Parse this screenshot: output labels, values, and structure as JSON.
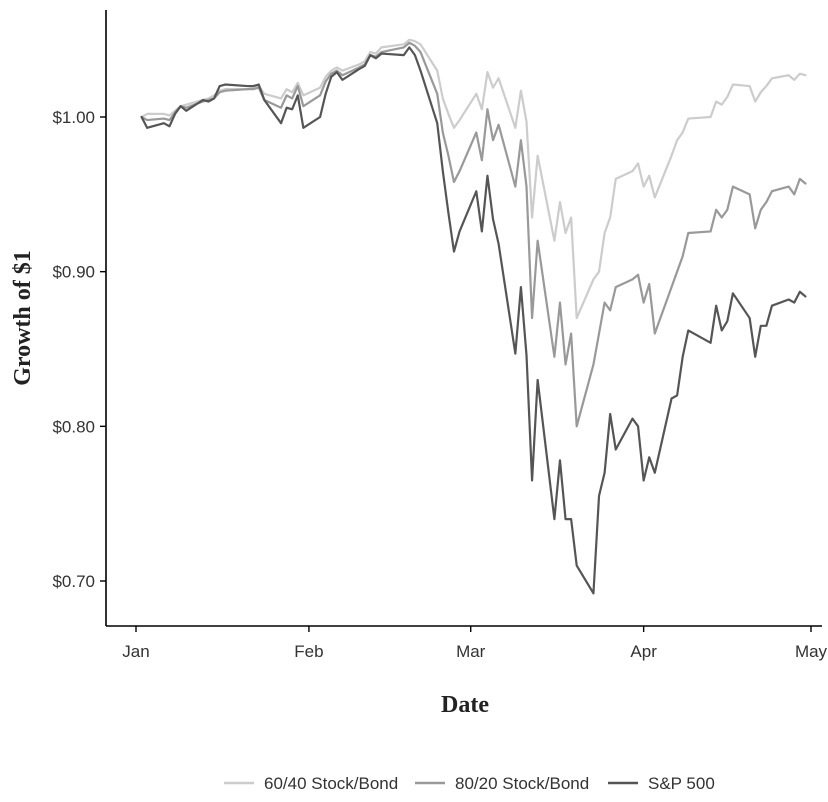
{
  "chart_data": {
    "type": "line",
    "title": "",
    "xlabel": "Date",
    "ylabel": "Growth of $1",
    "grid": false,
    "legend_position": "bottom",
    "x_domain": [
      "2020-01-01",
      "2020-05-01"
    ],
    "ylim": [
      0.675,
      1.07
    ],
    "x_ticks": [
      {
        "label": "Jan",
        "date": "2020-01-01"
      },
      {
        "label": "Feb",
        "date": "2020-02-01"
      },
      {
        "label": "Mar",
        "date": "2020-03-01"
      },
      {
        "label": "Apr",
        "date": "2020-04-01"
      },
      {
        "label": "May",
        "date": "2020-05-01"
      }
    ],
    "y_ticks": [
      {
        "label": "$0.70",
        "value": 0.7
      },
      {
        "label": "$0.80",
        "value": 0.8
      },
      {
        "label": "$0.90",
        "value": 0.9
      },
      {
        "label": "$1.00",
        "value": 1.0
      }
    ],
    "x": [
      "2020-01-02",
      "2020-01-03",
      "2020-01-06",
      "2020-01-07",
      "2020-01-08",
      "2020-01-09",
      "2020-01-10",
      "2020-01-13",
      "2020-01-14",
      "2020-01-15",
      "2020-01-16",
      "2020-01-17",
      "2020-01-21",
      "2020-01-22",
      "2020-01-23",
      "2020-01-24",
      "2020-01-27",
      "2020-01-28",
      "2020-01-29",
      "2020-01-30",
      "2020-01-31",
      "2020-02-03",
      "2020-02-04",
      "2020-02-05",
      "2020-02-06",
      "2020-02-07",
      "2020-02-10",
      "2020-02-11",
      "2020-02-12",
      "2020-02-13",
      "2020-02-14",
      "2020-02-18",
      "2020-02-19",
      "2020-02-20",
      "2020-02-21",
      "2020-02-24",
      "2020-02-25",
      "2020-02-26",
      "2020-02-27",
      "2020-02-28",
      "2020-03-02",
      "2020-03-03",
      "2020-03-04",
      "2020-03-05",
      "2020-03-06",
      "2020-03-09",
      "2020-03-10",
      "2020-03-11",
      "2020-03-12",
      "2020-03-13",
      "2020-03-16",
      "2020-03-17",
      "2020-03-18",
      "2020-03-19",
      "2020-03-20",
      "2020-03-23",
      "2020-03-24",
      "2020-03-25",
      "2020-03-26",
      "2020-03-27",
      "2020-03-30",
      "2020-03-31",
      "2020-04-01",
      "2020-04-02",
      "2020-04-03",
      "2020-04-06",
      "2020-04-07",
      "2020-04-08",
      "2020-04-09",
      "2020-04-13",
      "2020-04-14",
      "2020-04-15",
      "2020-04-16",
      "2020-04-17",
      "2020-04-20",
      "2020-04-21",
      "2020-04-22",
      "2020-04-23",
      "2020-04-24",
      "2020-04-27",
      "2020-04-28",
      "2020-04-29",
      "2020-04-30"
    ],
    "series": [
      {
        "name": "60/40 Stock/Bond",
        "color": "#cccccc",
        "values": [
          1.0,
          1.002,
          1.002,
          1.001,
          1.004,
          1.007,
          1.008,
          1.011,
          1.012,
          1.014,
          1.017,
          1.018,
          1.018,
          1.019,
          1.02,
          1.015,
          1.012,
          1.018,
          1.016,
          1.022,
          1.014,
          1.019,
          1.026,
          1.03,
          1.032,
          1.03,
          1.034,
          1.036,
          1.042,
          1.041,
          1.045,
          1.047,
          1.05,
          1.049,
          1.047,
          1.03,
          1.012,
          1.002,
          0.993,
          0.998,
          1.015,
          1.005,
          1.029,
          1.019,
          1.025,
          0.993,
          1.017,
          0.997,
          0.935,
          0.975,
          0.92,
          0.945,
          0.925,
          0.935,
          0.87,
          0.895,
          0.9,
          0.925,
          0.935,
          0.96,
          0.965,
          0.97,
          0.955,
          0.962,
          0.948,
          0.975,
          0.985,
          0.99,
          0.999,
          1.0,
          1.01,
          1.008,
          1.013,
          1.021,
          1.02,
          1.01,
          1.016,
          1.02,
          1.025,
          1.027,
          1.024,
          1.028,
          1.027
        ]
      },
      {
        "name": "80/20 Stock/Bond",
        "color": "#999999",
        "values": [
          1.0,
          0.998,
          0.999,
          0.998,
          1.003,
          1.007,
          1.006,
          1.01,
          1.011,
          1.012,
          1.016,
          1.017,
          1.018,
          1.018,
          1.019,
          1.011,
          1.006,
          1.014,
          1.012,
          1.02,
          1.007,
          1.014,
          1.023,
          1.028,
          1.03,
          1.027,
          1.032,
          1.034,
          1.04,
          1.039,
          1.042,
          1.045,
          1.048,
          1.046,
          1.042,
          1.015,
          0.99,
          0.975,
          0.958,
          0.965,
          0.99,
          0.972,
          1.005,
          0.985,
          0.995,
          0.955,
          0.985,
          0.955,
          0.87,
          0.92,
          0.845,
          0.88,
          0.84,
          0.86,
          0.8,
          0.84,
          0.86,
          0.88,
          0.875,
          0.89,
          0.895,
          0.898,
          0.88,
          0.892,
          0.86,
          0.89,
          0.9,
          0.91,
          0.925,
          0.926,
          0.94,
          0.935,
          0.94,
          0.955,
          0.95,
          0.928,
          0.94,
          0.945,
          0.952,
          0.955,
          0.95,
          0.96,
          0.957
        ]
      },
      {
        "name": "S&P 500",
        "color": "#555555",
        "values": [
          1.0,
          0.993,
          0.996,
          0.994,
          1.002,
          1.007,
          1.004,
          1.011,
          1.01,
          1.012,
          1.02,
          1.021,
          1.02,
          1.02,
          1.021,
          1.011,
          0.996,
          1.006,
          1.005,
          1.014,
          0.993,
          1.0,
          1.015,
          1.026,
          1.029,
          1.024,
          1.031,
          1.033,
          1.04,
          1.038,
          1.041,
          1.04,
          1.045,
          1.04,
          1.03,
          0.996,
          0.965,
          0.938,
          0.913,
          0.926,
          0.952,
          0.926,
          0.962,
          0.934,
          0.918,
          0.847,
          0.89,
          0.846,
          0.765,
          0.83,
          0.74,
          0.778,
          0.74,
          0.74,
          0.71,
          0.692,
          0.755,
          0.77,
          0.808,
          0.785,
          0.805,
          0.8,
          0.765,
          0.78,
          0.77,
          0.818,
          0.82,
          0.845,
          0.862,
          0.854,
          0.878,
          0.862,
          0.868,
          0.886,
          0.87,
          0.845,
          0.865,
          0.865,
          0.878,
          0.882,
          0.88,
          0.887,
          0.884
        ]
      }
    ]
  }
}
